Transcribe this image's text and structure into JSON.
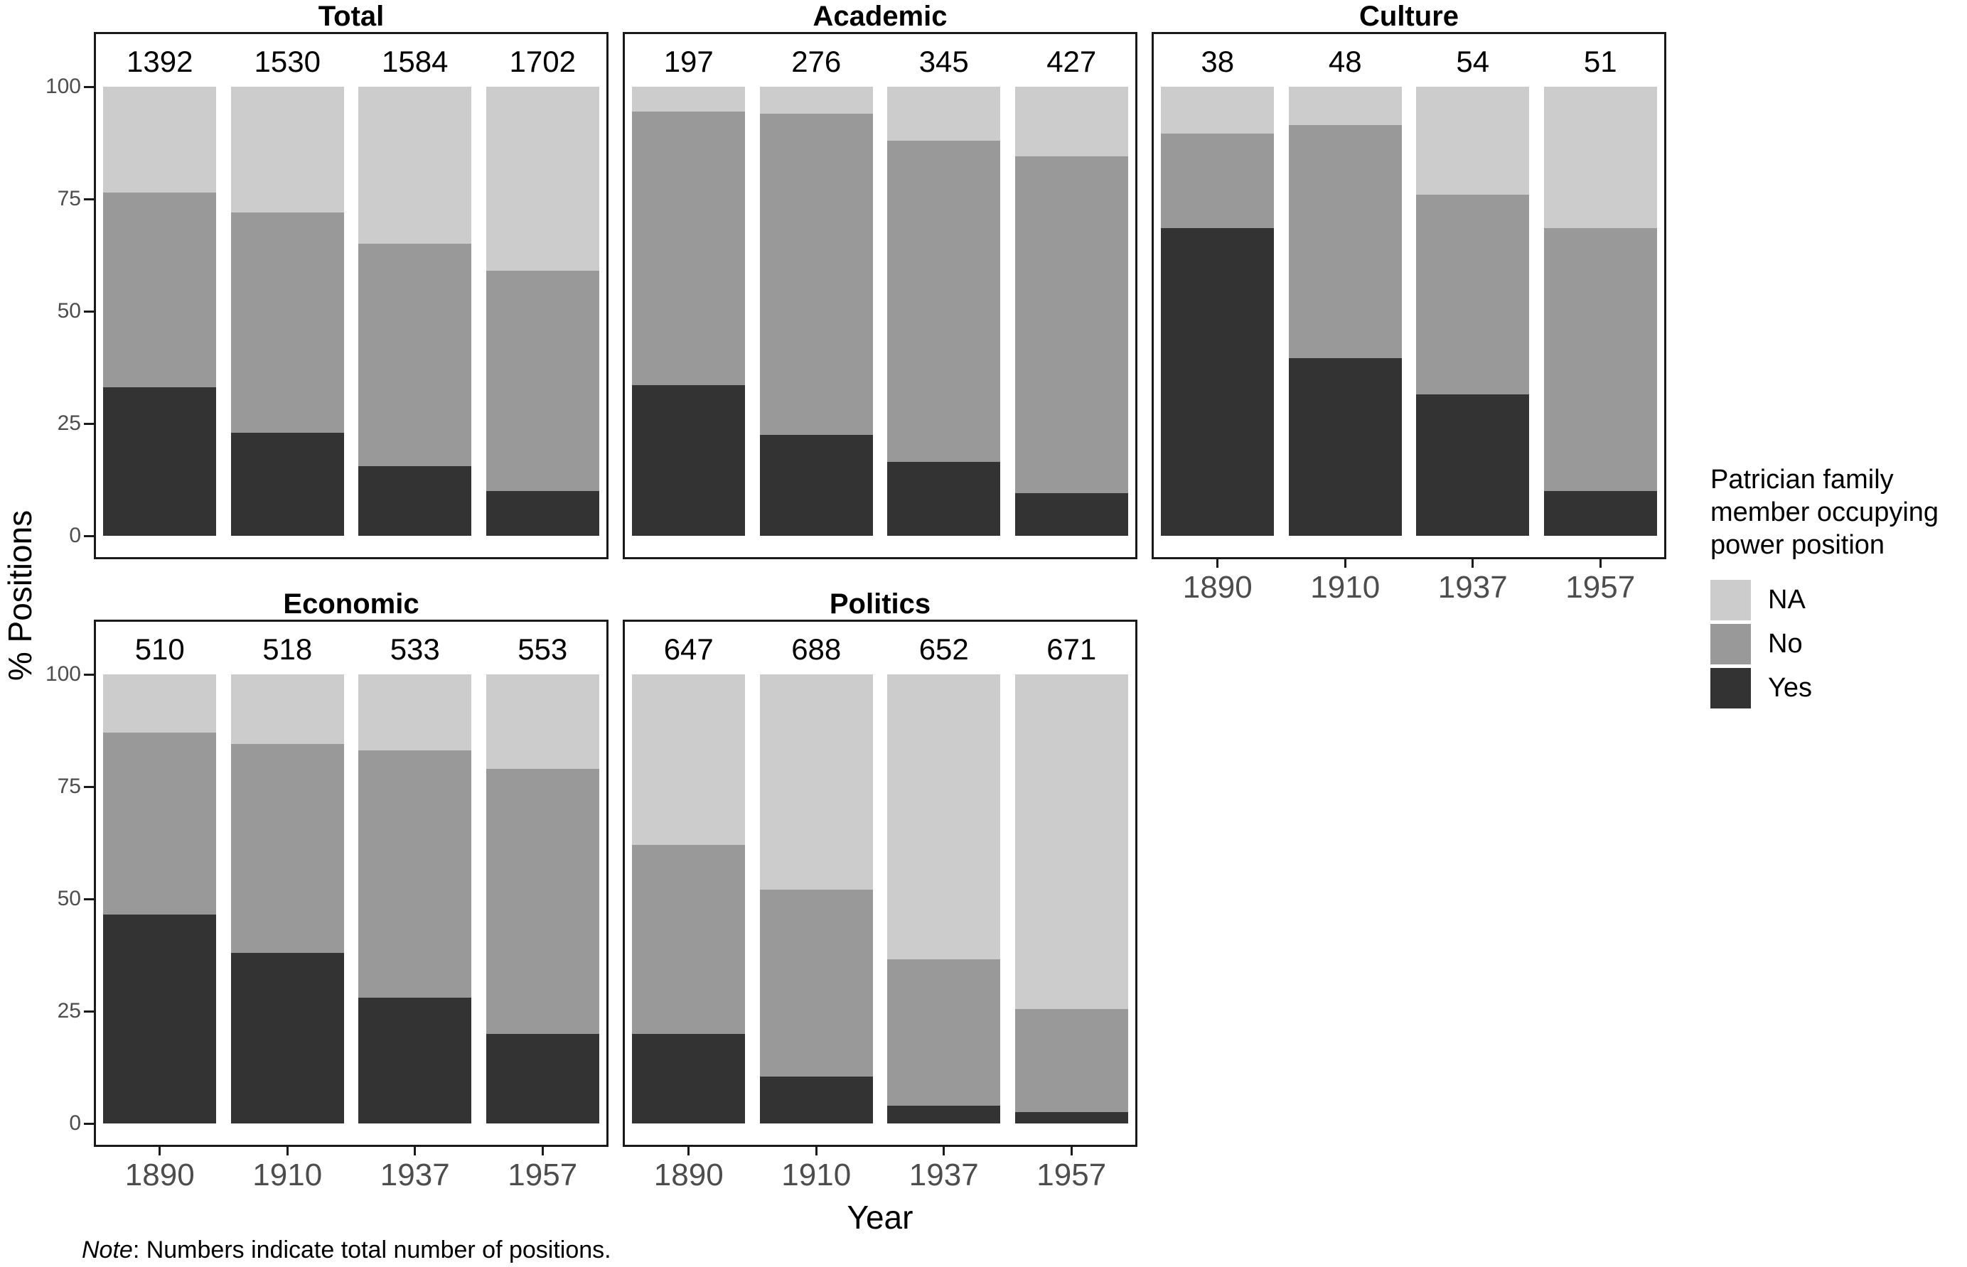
{
  "figure": {
    "background": "#ffffff"
  },
  "axes": {
    "y_label": "% Positions",
    "x_label": "Year",
    "y_ticks": [
      0,
      25,
      50,
      75,
      100
    ],
    "x_tick_labels": [
      "1890",
      "1910",
      "1937",
      "1957"
    ]
  },
  "note": {
    "prefix": "Note",
    "text": ": Numbers indicate total number of positions."
  },
  "legend": {
    "title_lines": [
      "Patrician family",
      "member occupying",
      "power position"
    ],
    "entries": [
      {
        "label": "NA",
        "color": "#cccccc"
      },
      {
        "label": "No",
        "color": "#999999"
      },
      {
        "label": "Yes",
        "color": "#333333"
      }
    ]
  },
  "chart_data": {
    "type": "bar",
    "subtype": "stacked-percent-faceted",
    "title": "",
    "xlabel": "Year",
    "ylabel": "% Positions",
    "ylim": [
      0,
      100
    ],
    "grid": false,
    "legend_position": "right",
    "categories": [
      "1890",
      "1910",
      "1937",
      "1957"
    ],
    "stack_order_bottom_to_top": [
      "Yes",
      "No",
      "NA"
    ],
    "colors": {
      "Yes": "#333333",
      "No": "#999999",
      "NA": "#cccccc"
    },
    "panels": [
      {
        "title": "Total",
        "row": 0,
        "col": 0,
        "show_x_axis": false,
        "counts": [
          1392,
          1530,
          1584,
          1702
        ],
        "series": {
          "Yes": [
            33,
            23,
            15.5,
            10
          ],
          "No": [
            43.5,
            49,
            49.5,
            49
          ],
          "NA": [
            23.5,
            28,
            35,
            41
          ]
        }
      },
      {
        "title": "Academic",
        "row": 0,
        "col": 1,
        "show_x_axis": false,
        "counts": [
          197,
          276,
          345,
          427
        ],
        "series": {
          "Yes": [
            33.5,
            22.5,
            16.5,
            9.5
          ],
          "No": [
            61,
            71.5,
            71.5,
            75
          ],
          "NA": [
            5.5,
            6,
            12,
            15.5
          ]
        }
      },
      {
        "title": "Culture",
        "row": 0,
        "col": 2,
        "show_x_axis": true,
        "counts": [
          38,
          48,
          54,
          51
        ],
        "series": {
          "Yes": [
            68.5,
            39.5,
            31.5,
            10
          ],
          "No": [
            21,
            52,
            44.5,
            58.5
          ],
          "NA": [
            10.5,
            8.5,
            24,
            31.5
          ]
        }
      },
      {
        "title": "Economic",
        "row": 1,
        "col": 0,
        "show_x_axis": true,
        "counts": [
          510,
          518,
          533,
          553
        ],
        "series": {
          "Yes": [
            46.5,
            38,
            28,
            20
          ],
          "No": [
            40.5,
            46.5,
            55,
            59
          ],
          "NA": [
            13,
            15.5,
            17,
            21
          ]
        }
      },
      {
        "title": "Politics",
        "row": 1,
        "col": 1,
        "show_x_axis": true,
        "counts": [
          647,
          688,
          652,
          671
        ],
        "series": {
          "Yes": [
            20,
            10.5,
            4,
            2.5
          ],
          "No": [
            42,
            41.5,
            32.5,
            23
          ],
          "NA": [
            38,
            48,
            63.5,
            74.5
          ]
        }
      }
    ]
  }
}
